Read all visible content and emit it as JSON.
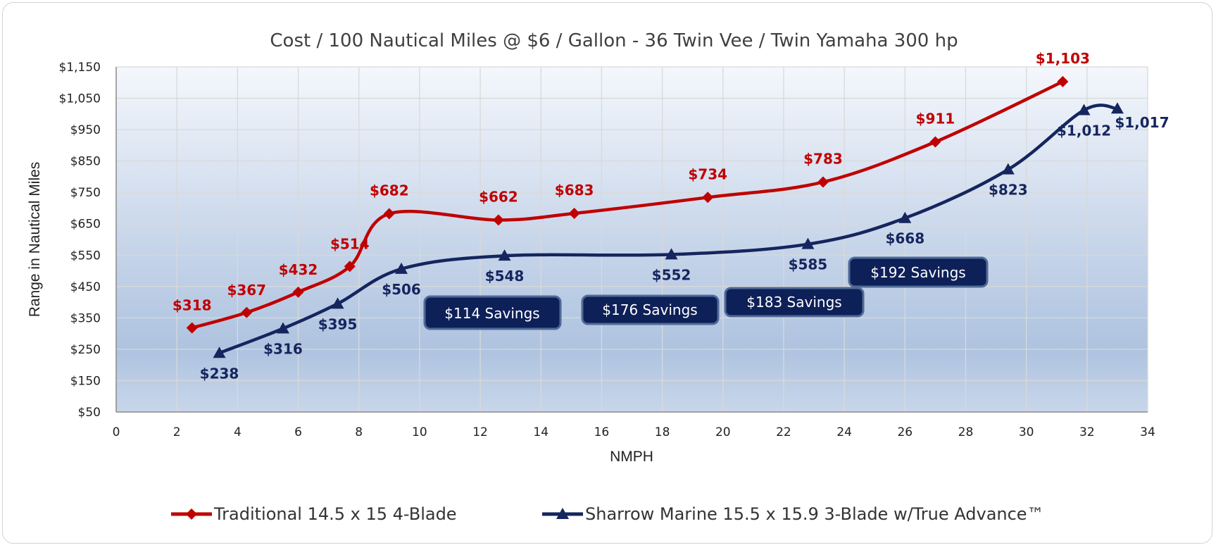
{
  "chart_data": {
    "type": "line",
    "title": "Cost / 100 Nautical Miles @ $6 / Gallon - 36 Twin Vee / Twin Yamaha 300 hp",
    "xlabel": "NMPH",
    "ylabel": "Range in Nautical Miles",
    "xlim": [
      0,
      34
    ],
    "ylim": [
      50,
      1150
    ],
    "x_ticks": [
      0,
      2,
      4,
      6,
      8,
      10,
      12,
      14,
      16,
      18,
      20,
      22,
      24,
      26,
      28,
      30,
      32,
      34
    ],
    "x_tick_labels": [
      "0",
      "2",
      "4",
      "6",
      "8",
      "10",
      "12",
      "14",
      "16",
      "18",
      "20",
      "22",
      "24",
      "26",
      "28",
      "30",
      "32",
      "34"
    ],
    "y_ticks": [
      50,
      150,
      250,
      350,
      450,
      550,
      650,
      750,
      850,
      950,
      1050,
      1150
    ],
    "y_tick_labels": [
      "$50",
      "$150",
      "$250",
      "$350",
      "$450",
      "$550",
      "$650",
      "$750",
      "$850",
      "$950",
      "$1,050",
      "$1,150"
    ],
    "grid": true,
    "legend_position": "bottom",
    "series": [
      {
        "name": "Traditional 14.5 x 15 4-Blade",
        "color": "#c00000",
        "marker": "diamond",
        "x": [
          2.5,
          4.3,
          6.0,
          7.7,
          9.0,
          12.6,
          15.1,
          19.5,
          23.3,
          27.0,
          31.2
        ],
        "y": [
          318,
          367,
          432,
          514,
          682,
          662,
          683,
          734,
          783,
          911,
          1103
        ],
        "labels": [
          "$318",
          "$367",
          "$432",
          "$514",
          "$682",
          "$662",
          "$683",
          "$734",
          "$783",
          "$911",
          "$1,103"
        ]
      },
      {
        "name": "Sharrow Marine 15.5 x 15.9 3-Blade w/True Advance™",
        "color": "#15255e",
        "marker": "triangle",
        "x": [
          3.4,
          5.5,
          7.3,
          9.4,
          12.8,
          18.3,
          22.8,
          26.0,
          29.4,
          31.9,
          33.0
        ],
        "y": [
          238,
          316,
          395,
          506,
          548,
          552,
          585,
          668,
          823,
          1012,
          1017
        ],
        "labels": [
          "$238",
          "$316",
          "$395",
          "$506",
          "$548",
          "$552",
          "$585",
          "$668",
          "$823",
          "$1,012",
          "$1,017"
        ]
      }
    ],
    "annotations": [
      "$114 Savings",
      "$176 Savings",
      "$183 Savings",
      "$192 Savings"
    ]
  }
}
